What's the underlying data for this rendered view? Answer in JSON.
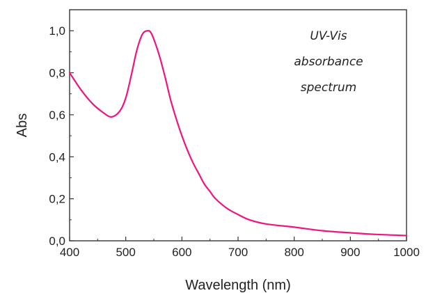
{
  "chart_data": {
    "type": "line",
    "title": "",
    "xlabel": "Wavelength (nm)",
    "ylabel": "Abs",
    "xlim": [
      400,
      1000
    ],
    "ylim": [
      0.0,
      1.1
    ],
    "grid": false,
    "x_ticks": [
      400,
      500,
      600,
      700,
      800,
      900,
      1000
    ],
    "x_tick_labels": [
      "400",
      "500",
      "600",
      "700",
      "800",
      "900",
      "1000"
    ],
    "y_ticks": [
      0.0,
      0.2,
      0.4,
      0.6,
      0.8,
      1.0
    ],
    "y_tick_labels": [
      "0,0",
      "0,2",
      "0,4",
      "0,6",
      "0,8",
      "1,0"
    ],
    "annotation": [
      "UV-Vis",
      "absorbance",
      "spectrum"
    ],
    "series": [
      {
        "color": "#f0147e",
        "x": [
          400,
          420,
          440,
          460,
          475,
          490,
          500,
          510,
          520,
          530,
          540,
          545,
          550,
          560,
          570,
          580,
          590,
          600,
          610,
          620,
          630,
          640,
          650,
          660,
          680,
          700,
          720,
          750,
          800,
          850,
          900,
          950,
          1000
        ],
        "y": [
          0.8,
          0.72,
          0.655,
          0.61,
          0.59,
          0.62,
          0.68,
          0.79,
          0.91,
          0.985,
          1.0,
          0.99,
          0.96,
          0.88,
          0.78,
          0.67,
          0.58,
          0.5,
          0.43,
          0.37,
          0.32,
          0.27,
          0.235,
          0.2,
          0.155,
          0.125,
          0.1,
          0.08,
          0.065,
          0.048,
          0.038,
          0.03,
          0.025
        ]
      }
    ]
  }
}
